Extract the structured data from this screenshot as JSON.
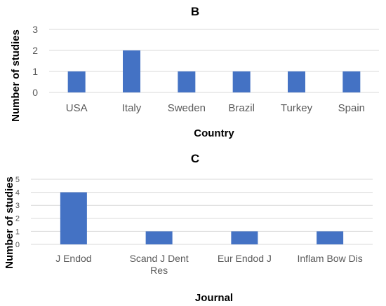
{
  "chart_data": [
    {
      "type": "bar",
      "title": "B",
      "xlabel": "Country",
      "ylabel": "Number of studies",
      "categories": [
        "USA",
        "Italy",
        "Sweden",
        "Brazil",
        "Turkey",
        "Spain"
      ],
      "values": [
        1,
        2,
        1,
        1,
        1,
        1
      ],
      "ylim": [
        0,
        3
      ],
      "yticks": [
        "0",
        "1",
        "2",
        "3"
      ],
      "grid": true,
      "color": "#4472c4"
    },
    {
      "type": "bar",
      "title": "C",
      "xlabel": "Journal",
      "ylabel": "Number of studies",
      "categories": [
        "J Endod",
        "Scand J Dent Res",
        "Eur Endod J",
        "Inflam Bow Dis"
      ],
      "category_lines": [
        [
          "J Endod"
        ],
        [
          "Scand J Dent",
          "Res"
        ],
        [
          "Eur Endod J"
        ],
        [
          "Inflam Bow Dis"
        ]
      ],
      "values": [
        4,
        1,
        1,
        1
      ],
      "ylim": [
        0,
        5
      ],
      "yticks": [
        "0",
        "1",
        "2",
        "3",
        "4",
        "5"
      ],
      "grid": true,
      "color": "#4472c4"
    }
  ]
}
